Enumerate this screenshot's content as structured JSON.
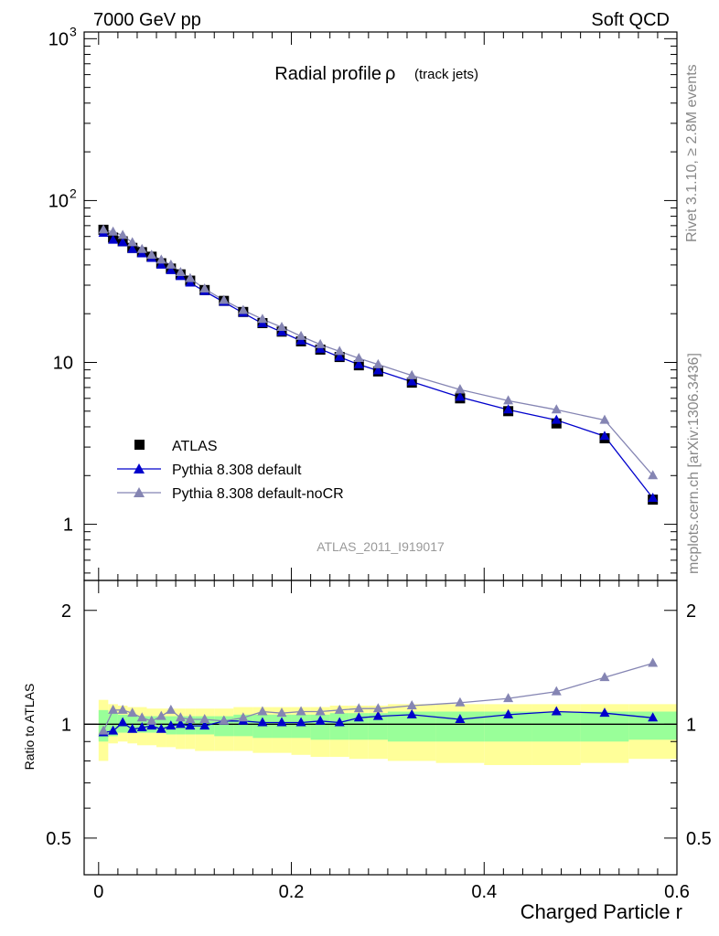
{
  "header": {
    "left": "7000 GeV pp",
    "right": "Soft QCD"
  },
  "side_text": {
    "top": "Rivet 3.1.10, ≥ 2.8M events",
    "bottom": "mcplots.cern.ch [arXiv:1306.3436]"
  },
  "chart_data": [
    {
      "type": "scatter",
      "panel": "main",
      "title": "Radial profile",
      "title_symbol": "ρ",
      "title_suffix": "(track jets)",
      "watermark": "ATLAS_2011_I919017",
      "yscale": "log",
      "xlim": [
        -0.015,
        0.6
      ],
      "ylim": [
        0.45,
        1100
      ],
      "y_ticks": [
        {
          "value": 1,
          "label": "1"
        },
        {
          "value": 10,
          "label": "10"
        },
        {
          "value": 100,
          "label": "10",
          "sup": "2"
        },
        {
          "value": 1000,
          "label": "10",
          "sup": "3"
        }
      ],
      "legend_position": "lower-left",
      "series": [
        {
          "name": "ATLAS",
          "style": "marker",
          "marker": "square",
          "color": "#000000",
          "points": [
            [
              0.005,
              66
            ],
            [
              0.015,
              59
            ],
            [
              0.025,
              56
            ],
            [
              0.035,
              51
            ],
            [
              0.045,
              48
            ],
            [
              0.055,
              45
            ],
            [
              0.065,
              41
            ],
            [
              0.075,
              38
            ],
            [
              0.085,
              35
            ],
            [
              0.095,
              32
            ],
            [
              0.11,
              28
            ],
            [
              0.13,
              24
            ],
            [
              0.15,
              20.5
            ],
            [
              0.17,
              17.5
            ],
            [
              0.19,
              15.5
            ],
            [
              0.21,
              13.5
            ],
            [
              0.23,
              12
            ],
            [
              0.25,
              10.8
            ],
            [
              0.27,
              9.6
            ],
            [
              0.29,
              8.8
            ],
            [
              0.325,
              7.5
            ],
            [
              0.375,
              6.0
            ],
            [
              0.425,
              5.0
            ],
            [
              0.475,
              4.2
            ],
            [
              0.525,
              3.4
            ],
            [
              0.575,
              1.42
            ]
          ]
        },
        {
          "name": "Pythia 8.308 default",
          "style": "line-marker",
          "marker": "triangle",
          "color": "#0000cc",
          "points": [
            [
              0.005,
              63
            ],
            [
              0.015,
              57
            ],
            [
              0.025,
              55
            ],
            [
              0.035,
              50
            ],
            [
              0.045,
              47
            ],
            [
              0.055,
              44
            ],
            [
              0.065,
              40
            ],
            [
              0.075,
              37
            ],
            [
              0.085,
              34
            ],
            [
              0.095,
              31
            ],
            [
              0.11,
              27.5
            ],
            [
              0.13,
              23.6
            ],
            [
              0.15,
              20.2
            ],
            [
              0.17,
              17.4
            ],
            [
              0.19,
              15.4
            ],
            [
              0.21,
              13.6
            ],
            [
              0.23,
              12.1
            ],
            [
              0.25,
              10.8
            ],
            [
              0.27,
              9.7
            ],
            [
              0.29,
              8.9
            ],
            [
              0.325,
              7.6
            ],
            [
              0.375,
              6.1
            ],
            [
              0.425,
              5.1
            ],
            [
              0.475,
              4.4
            ],
            [
              0.525,
              3.5
            ],
            [
              0.575,
              1.45
            ]
          ]
        },
        {
          "name": "Pythia 8.308 default-noCR",
          "style": "line-marker",
          "marker": "triangle",
          "color": "#8585b3",
          "points": [
            [
              0.005,
              66
            ],
            [
              0.015,
              64
            ],
            [
              0.025,
              61
            ],
            [
              0.035,
              55
            ],
            [
              0.045,
              50
            ],
            [
              0.055,
              46
            ],
            [
              0.065,
              43
            ],
            [
              0.075,
              40
            ],
            [
              0.085,
              36
            ],
            [
              0.095,
              33
            ],
            [
              0.11,
              28.5
            ],
            [
              0.13,
              24.2
            ],
            [
              0.15,
              21
            ],
            [
              0.17,
              18.5
            ],
            [
              0.19,
              16.5
            ],
            [
              0.21,
              14.5
            ],
            [
              0.23,
              12.9
            ],
            [
              0.25,
              11.7
            ],
            [
              0.27,
              10.6
            ],
            [
              0.29,
              9.7
            ],
            [
              0.325,
              8.3
            ],
            [
              0.375,
              6.8
            ],
            [
              0.425,
              5.8
            ],
            [
              0.475,
              5.1
            ],
            [
              0.525,
              4.4
            ],
            [
              0.575,
              2.0
            ]
          ]
        }
      ]
    },
    {
      "type": "scatter",
      "panel": "ratio",
      "ylabel": "Ratio to ATLAS",
      "xlabel": "Charged Particle r",
      "yscale": "log",
      "xlim": [
        -0.015,
        0.6
      ],
      "ylim": [
        0.4,
        2.4
      ],
      "x_ticks": [
        {
          "value": 0,
          "label": "0"
        },
        {
          "value": 0.2,
          "label": "0.2"
        },
        {
          "value": 0.4,
          "label": "0.4"
        },
        {
          "value": 0.6,
          "label": "0.6"
        }
      ],
      "y_ticks": [
        {
          "value": 0.5,
          "label": "0.5"
        },
        {
          "value": 1,
          "label": "1"
        },
        {
          "value": 2,
          "label": "2"
        }
      ],
      "reference_line": 1,
      "bands": {
        "bins": [
          [
            0,
            0.01
          ],
          [
            0.01,
            0.02
          ],
          [
            0.02,
            0.03
          ],
          [
            0.03,
            0.04
          ],
          [
            0.04,
            0.05
          ],
          [
            0.05,
            0.06
          ],
          [
            0.06,
            0.07
          ],
          [
            0.07,
            0.08
          ],
          [
            0.08,
            0.09
          ],
          [
            0.09,
            0.1
          ],
          [
            0.1,
            0.12
          ],
          [
            0.12,
            0.14
          ],
          [
            0.14,
            0.16
          ],
          [
            0.16,
            0.18
          ],
          [
            0.18,
            0.2
          ],
          [
            0.2,
            0.22
          ],
          [
            0.22,
            0.24
          ],
          [
            0.24,
            0.26
          ],
          [
            0.26,
            0.28
          ],
          [
            0.28,
            0.3
          ],
          [
            0.3,
            0.35
          ],
          [
            0.35,
            0.4
          ],
          [
            0.4,
            0.45
          ],
          [
            0.45,
            0.5
          ],
          [
            0.5,
            0.55
          ],
          [
            0.55,
            0.6
          ]
        ],
        "stat": {
          "color": "#99ff99",
          "lo": [
            0.9,
            0.93,
            0.95,
            0.95,
            0.95,
            0.95,
            0.95,
            0.94,
            0.94,
            0.94,
            0.94,
            0.93,
            0.93,
            0.92,
            0.92,
            0.92,
            0.91,
            0.91,
            0.91,
            0.91,
            0.9,
            0.9,
            0.9,
            0.9,
            0.9,
            0.91
          ],
          "hi": [
            1.09,
            1.07,
            1.06,
            1.06,
            1.05,
            1.05,
            1.05,
            1.05,
            1.05,
            1.05,
            1.05,
            1.05,
            1.06,
            1.06,
            1.06,
            1.06,
            1.06,
            1.07,
            1.07,
            1.07,
            1.08,
            1.08,
            1.08,
            1.08,
            1.08,
            1.08
          ]
        },
        "total": {
          "color": "#ffff99",
          "lo": [
            0.8,
            0.89,
            0.9,
            0.89,
            0.88,
            0.88,
            0.87,
            0.87,
            0.86,
            0.86,
            0.85,
            0.85,
            0.85,
            0.84,
            0.84,
            0.83,
            0.82,
            0.82,
            0.81,
            0.81,
            0.8,
            0.79,
            0.78,
            0.78,
            0.79,
            0.81
          ],
          "hi": [
            1.16,
            1.13,
            1.12,
            1.11,
            1.11,
            1.1,
            1.1,
            1.1,
            1.1,
            1.1,
            1.1,
            1.1,
            1.11,
            1.11,
            1.11,
            1.11,
            1.11,
            1.12,
            1.12,
            1.12,
            1.13,
            1.13,
            1.13,
            1.13,
            1.13,
            1.13
          ]
        }
      },
      "series": [
        {
          "name": "Pythia 8.308 default",
          "color": "#0000cc",
          "points": [
            [
              0.005,
              0.95
            ],
            [
              0.015,
              0.96
            ],
            [
              0.025,
              1.01
            ],
            [
              0.035,
              0.97
            ],
            [
              0.045,
              0.98
            ],
            [
              0.055,
              0.99
            ],
            [
              0.065,
              0.97
            ],
            [
              0.075,
              0.99
            ],
            [
              0.085,
              1.0
            ],
            [
              0.095,
              0.99
            ],
            [
              0.11,
              0.99
            ],
            [
              0.13,
              1.02
            ],
            [
              0.15,
              1.02
            ],
            [
              0.17,
              1.01
            ],
            [
              0.19,
              1.01
            ],
            [
              0.21,
              1.01
            ],
            [
              0.23,
              1.02
            ],
            [
              0.25,
              1.01
            ],
            [
              0.27,
              1.04
            ],
            [
              0.29,
              1.05
            ],
            [
              0.325,
              1.06
            ],
            [
              0.375,
              1.03
            ],
            [
              0.425,
              1.06
            ],
            [
              0.475,
              1.08
            ],
            [
              0.525,
              1.07
            ],
            [
              0.575,
              1.04
            ]
          ]
        },
        {
          "name": "Pythia 8.308 default-noCR",
          "color": "#8585b3",
          "points": [
            [
              0.005,
              0.96
            ],
            [
              0.015,
              1.09
            ],
            [
              0.025,
              1.09
            ],
            [
              0.035,
              1.07
            ],
            [
              0.045,
              1.04
            ],
            [
              0.055,
              1.02
            ],
            [
              0.065,
              1.05
            ],
            [
              0.075,
              1.09
            ],
            [
              0.085,
              1.04
            ],
            [
              0.095,
              1.03
            ],
            [
              0.11,
              1.03
            ],
            [
              0.13,
              1.02
            ],
            [
              0.15,
              1.04
            ],
            [
              0.17,
              1.08
            ],
            [
              0.19,
              1.07
            ],
            [
              0.21,
              1.08
            ],
            [
              0.23,
              1.08
            ],
            [
              0.25,
              1.09
            ],
            [
              0.27,
              1.1
            ],
            [
              0.29,
              1.1
            ],
            [
              0.325,
              1.12
            ],
            [
              0.375,
              1.14
            ],
            [
              0.425,
              1.17
            ],
            [
              0.475,
              1.22
            ],
            [
              0.525,
              1.33
            ],
            [
              0.575,
              1.45
            ]
          ]
        }
      ]
    }
  ]
}
